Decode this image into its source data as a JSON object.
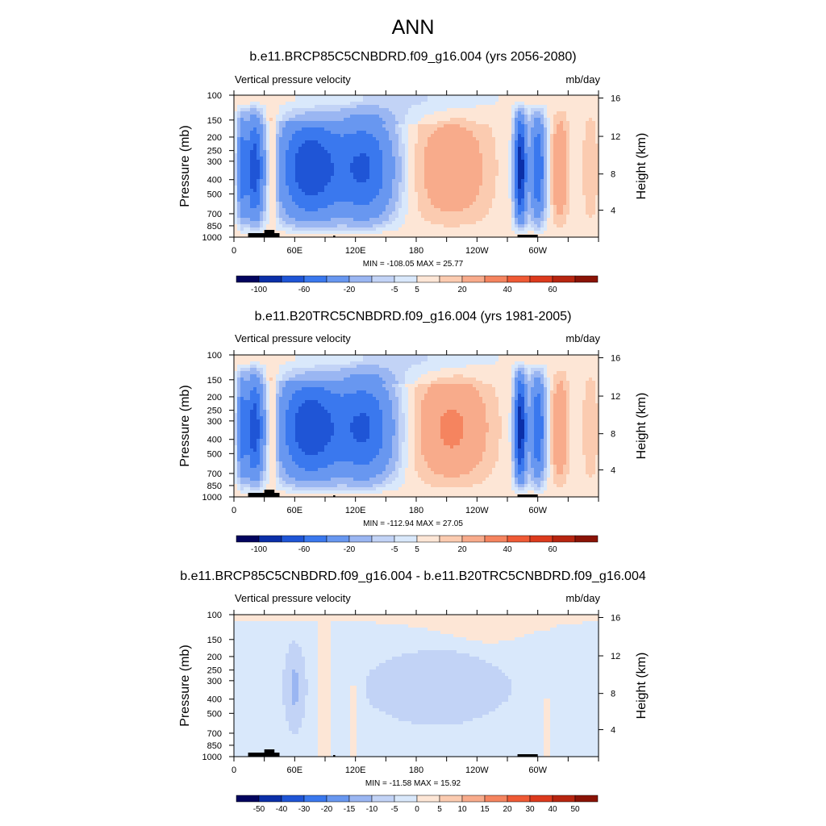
{
  "figure": {
    "title": "ANN"
  },
  "chart_data": [
    {
      "type": "heatmap",
      "title": "b.e11.BRCP85C5CNBDRD.f09_g16.004 (yrs 2056-2080)",
      "subtitle_left": "Vertical pressure velocity",
      "subtitle_right": "mb/day",
      "ylabel": "Pressure (mb)",
      "ylabel_right": "Height (km)",
      "x_ticks": [
        "0",
        "60E",
        "120E",
        "180",
        "120W",
        "60W"
      ],
      "y_ticks": [
        "100",
        "150",
        "200",
        "250",
        "300",
        "400",
        "500",
        "700",
        "850",
        "1000"
      ],
      "y_right_ticks": [
        "16",
        "12",
        "8",
        "4"
      ],
      "stats": "MIN = -108.05  MAX =  25.77",
      "colorbar_labels": [
        "-100",
        "-60",
        "-20",
        "-5",
        "5",
        "20",
        "40",
        "60"
      ],
      "colorbar_colors": [
        "#03045e",
        "#0b2fa8",
        "#1f55d6",
        "#3a78ee",
        "#6897f0",
        "#9ab6f2",
        "#c2d3f6",
        "#d9e8fb",
        "#fde6d6",
        "#fbcbb0",
        "#f8ab8b",
        "#f5845f",
        "#ef5a35",
        "#dc3a1d",
        "#b72510",
        "#8a1306"
      ],
      "data_range": {
        "min": -108.05,
        "max": 25.77
      }
    },
    {
      "type": "heatmap",
      "title": "b.e11.B20TRC5CNBDRD.f09_g16.004 (yrs 1981-2005)",
      "subtitle_left": "Vertical pressure velocity",
      "subtitle_right": "mb/day",
      "ylabel": "Pressure (mb)",
      "ylabel_right": "Height (km)",
      "x_ticks": [
        "0",
        "60E",
        "120E",
        "180",
        "120W",
        "60W"
      ],
      "y_ticks": [
        "100",
        "150",
        "200",
        "250",
        "300",
        "400",
        "500",
        "700",
        "850",
        "1000"
      ],
      "y_right_ticks": [
        "16",
        "12",
        "8",
        "4"
      ],
      "stats": "MIN = -112.94  MAX =  27.05",
      "colorbar_labels": [
        "-100",
        "-60",
        "-20",
        "-5",
        "5",
        "20",
        "40",
        "60"
      ],
      "colorbar_colors": [
        "#03045e",
        "#0b2fa8",
        "#1f55d6",
        "#3a78ee",
        "#6897f0",
        "#9ab6f2",
        "#c2d3f6",
        "#d9e8fb",
        "#fde6d6",
        "#fbcbb0",
        "#f8ab8b",
        "#f5845f",
        "#ef5a35",
        "#dc3a1d",
        "#b72510",
        "#8a1306"
      ],
      "data_range": {
        "min": -112.94,
        "max": 27.05
      }
    },
    {
      "type": "heatmap",
      "title": "b.e11.BRCP85C5CNBDRD.f09_g16.004 - b.e11.B20TRC5CNBDRD.f09_g16.004",
      "subtitle_left": "Vertical pressure velocity",
      "subtitle_right": "mb/day",
      "ylabel": "Pressure (mb)",
      "ylabel_right": "Height (km)",
      "x_ticks": [
        "0",
        "60E",
        "120E",
        "180",
        "120W",
        "60W"
      ],
      "y_ticks": [
        "100",
        "150",
        "200",
        "250",
        "300",
        "400",
        "500",
        "700",
        "850",
        "1000"
      ],
      "y_right_ticks": [
        "16",
        "12",
        "8",
        "4"
      ],
      "stats": "MIN = -11.58  MAX =  15.92",
      "colorbar_labels": [
        "-50",
        "-40",
        "-30",
        "-20",
        "-15",
        "-10",
        "-5",
        "0",
        "5",
        "10",
        "15",
        "20",
        "30",
        "40",
        "50"
      ],
      "colorbar_colors": [
        "#03045e",
        "#0b2fa8",
        "#1f55d6",
        "#3a78ee",
        "#6897f0",
        "#9ab6f2",
        "#c2d3f6",
        "#d9e8fb",
        "#fde6d6",
        "#fbcbb0",
        "#f8ab8b",
        "#f5845f",
        "#ef5a35",
        "#dc3a1d",
        "#b72510",
        "#8a1306"
      ],
      "data_range": {
        "min": -11.58,
        "max": 15.92
      }
    }
  ]
}
